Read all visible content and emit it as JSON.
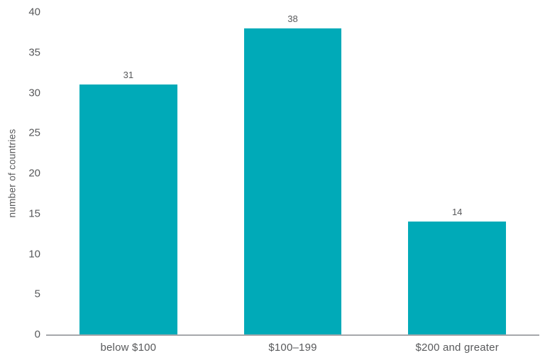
{
  "chart_data": {
    "type": "bar",
    "title": "",
    "categories": [
      "below $100",
      "$100–199",
      "$200 and greater"
    ],
    "values": [
      31,
      38,
      14
    ],
    "value_labels_shown": true,
    "xlabel": "",
    "ylabel": "number of countries",
    "ylim": [
      0,
      40
    ],
    "yticks": [
      0,
      5,
      10,
      15,
      20,
      25,
      30,
      35,
      40
    ],
    "grid": false,
    "legend": false,
    "colors": {
      "bar": "#00aab8",
      "axis_line": "#a6a8ab",
      "text": "#58595b"
    }
  }
}
